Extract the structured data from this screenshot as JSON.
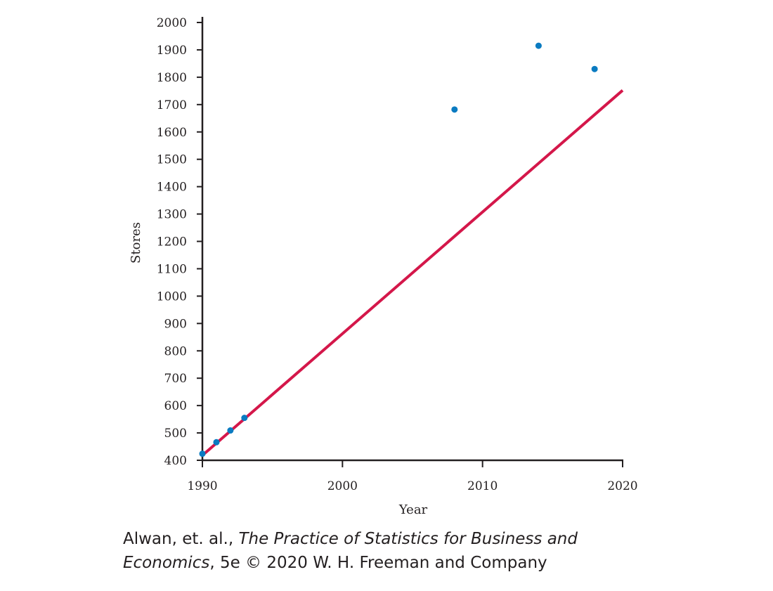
{
  "chart_data": {
    "type": "scatter",
    "xlabel": "Year",
    "ylabel": "Stores",
    "xlim": [
      1990,
      2020
    ],
    "ylim": [
      400,
      2000
    ],
    "xticks": [
      1990,
      2000,
      2010,
      2020
    ],
    "yticks": [
      400,
      500,
      600,
      700,
      800,
      900,
      1000,
      1100,
      1200,
      1300,
      1400,
      1500,
      1600,
      1700,
      1800,
      1900,
      2000
    ],
    "grid": false,
    "points": [
      {
        "x": 1990,
        "y": 424
      },
      {
        "x": 1991,
        "y": 466
      },
      {
        "x": 1992,
        "y": 509
      },
      {
        "x": 1993,
        "y": 555
      },
      {
        "x": 2008,
        "y": 1682
      },
      {
        "x": 2014,
        "y": 1915
      },
      {
        "x": 2018,
        "y": 1830
      }
    ],
    "trend_line": {
      "x": [
        1990,
        2020
      ],
      "y": [
        418,
        1752
      ]
    },
    "colors": {
      "points": "#0a7bc1",
      "trend_line": "#d4174a",
      "axis": "#231f20"
    }
  },
  "credit": {
    "authors": "Alwan, et. al., ",
    "book_title_1": "The Practice of Statistics for Business and",
    "book_title_2": "Economics",
    "edition_copyright": ", 5e © 2020 W. H. Freeman and Company"
  }
}
